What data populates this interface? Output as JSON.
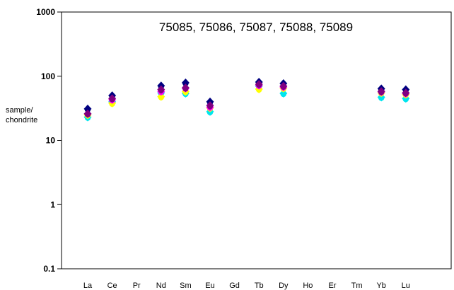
{
  "chart_data": {
    "type": "scatter",
    "title": "75085, 75086, 75087, 75088, 75089",
    "ylabel": [
      "sample/",
      "chondrite"
    ],
    "xlabel": "",
    "yscale": "log",
    "ylim": [
      0.1,
      1000
    ],
    "yticks": [
      "1000",
      "100",
      "10",
      "1",
      "0.1"
    ],
    "categories": [
      "La",
      "Ce",
      "Pr",
      "Nd",
      "Sm",
      "Eu",
      "Gd",
      "Tb",
      "Dy",
      "Ho",
      "Er",
      "Tm",
      "Yb",
      "Lu"
    ],
    "grid": false,
    "series": [
      {
        "color": "#00e5ee",
        "values": [
          23,
          40,
          null,
          55,
          54,
          28,
          null,
          70,
          54,
          null,
          null,
          null,
          47,
          45
        ]
      },
      {
        "color": "#ffff00",
        "values": [
          25,
          38,
          null,
          48,
          58,
          32,
          null,
          63,
          65,
          null,
          null,
          null,
          55,
          52
        ]
      },
      {
        "color": "#ff00ff",
        "values": [
          26,
          43,
          null,
          58,
          65,
          33,
          null,
          72,
          68,
          null,
          null,
          null,
          57,
          54
        ]
      },
      {
        "color": "#000080",
        "values": [
          31,
          50,
          null,
          71,
          79,
          40,
          null,
          81,
          77,
          null,
          null,
          null,
          64,
          62
        ]
      },
      {
        "color": "#800080",
        "values": [
          26,
          45,
          null,
          62,
          66,
          35,
          null,
          75,
          70,
          null,
          null,
          null,
          58,
          55
        ]
      }
    ]
  }
}
